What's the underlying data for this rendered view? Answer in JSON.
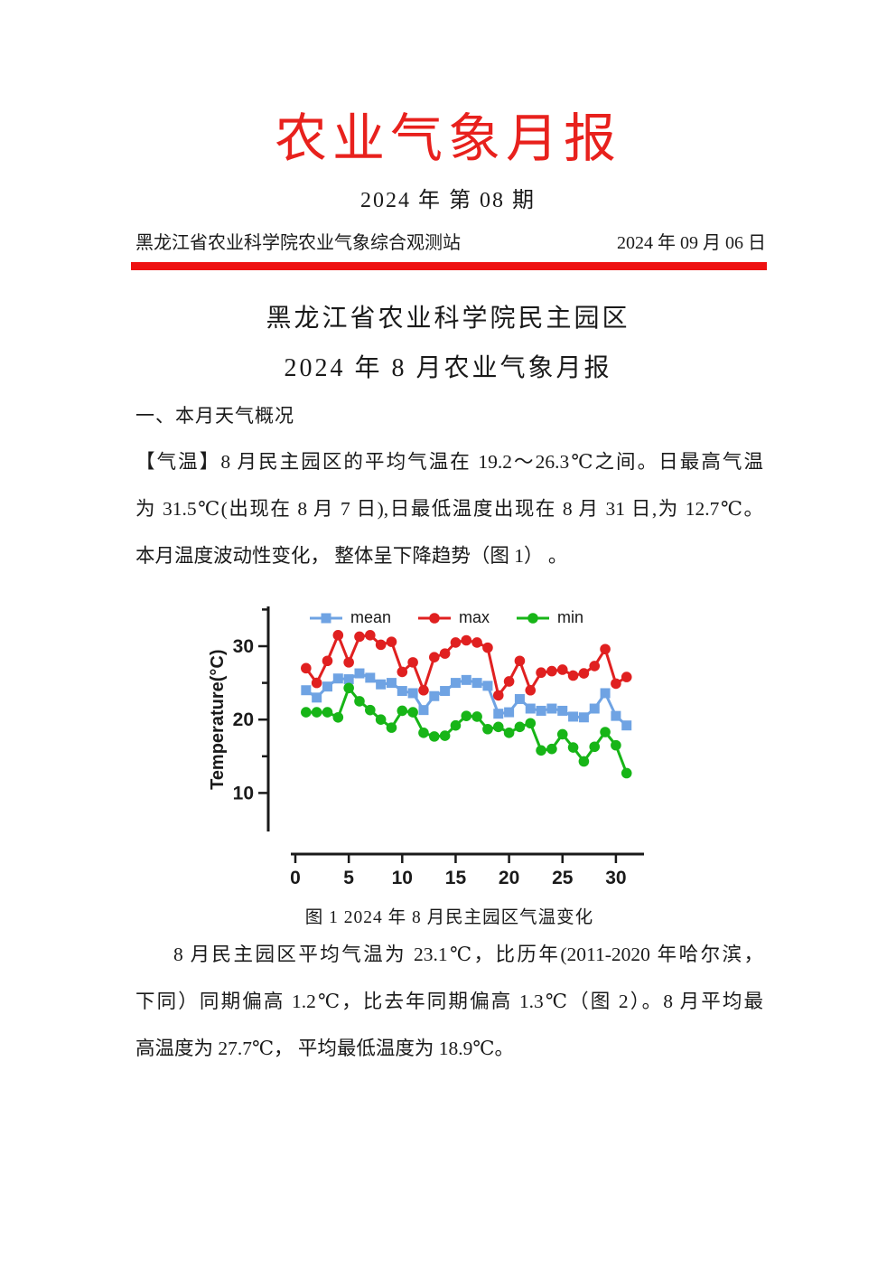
{
  "report": {
    "title": "农业气象月报",
    "issue": "2024 年 第 08 期",
    "organization": "黑龙江省农业科学院农业气象综合观测站",
    "date": "2024 年 09 月 06 日",
    "title_color": "#e8211d",
    "rule_color": "#ee1111"
  },
  "document": {
    "heading_line1": "黑龙江省农业科学院民主园区",
    "heading_line2": "2024 年 8 月农业气象月报",
    "section1_title": "一、本月天气概况",
    "paragraph1_lines": [
      "【气温】8 月民主园区的平均气温在 19.2～26.3℃之间。日最高气温",
      "为 31.5℃(出现在 8 月 7 日),日最低温度出现在 8 月 31 日,为 12.7℃。",
      "本月温度波动性变化， 整体呈下降趋势（图 1） 。"
    ],
    "figure1_caption": "图 1 2024 年 8 月民主园区气温变化",
    "paragraph2_lines": [
      "8 月民主园区平均气温为 23.1℃，比历年(2011-2020 年哈尔滨，",
      "下同）同期偏高 1.2℃，比去年同期偏高 1.3℃（图 2）。8 月平均最",
      "高温度为 27.7℃， 平均最低温度为 18.9℃。"
    ]
  },
  "chart_data": {
    "type": "line",
    "title": "",
    "xlabel": "",
    "ylabel": "Temperature(°C)",
    "x": [
      1,
      2,
      3,
      4,
      5,
      6,
      7,
      8,
      9,
      10,
      11,
      12,
      13,
      14,
      15,
      16,
      17,
      18,
      19,
      20,
      21,
      22,
      23,
      24,
      25,
      26,
      27,
      28,
      29,
      30,
      31
    ],
    "series": [
      {
        "name": "mean",
        "color": "#6fa3e3",
        "marker": "square",
        "values": [
          24.0,
          23.0,
          24.5,
          25.6,
          25.5,
          26.3,
          25.7,
          24.8,
          25.0,
          23.9,
          23.6,
          21.3,
          23.2,
          23.9,
          25.0,
          25.4,
          25.0,
          24.6,
          20.8,
          21.0,
          22.8,
          21.5,
          21.2,
          21.5,
          21.2,
          20.4,
          20.3,
          21.5,
          23.6,
          20.5,
          19.2
        ]
      },
      {
        "name": "max",
        "color": "#e02020",
        "marker": "circle",
        "values": [
          27.0,
          25.0,
          28.0,
          31.5,
          27.8,
          31.3,
          31.5,
          30.2,
          30.6,
          26.5,
          27.8,
          24.0,
          28.5,
          29.0,
          30.5,
          30.8,
          30.5,
          29.8,
          23.3,
          25.2,
          28.0,
          24.0,
          26.4,
          26.6,
          26.8,
          26.0,
          26.3,
          27.3,
          29.6,
          24.9,
          25.8
        ]
      },
      {
        "name": "min",
        "color": "#17b517",
        "marker": "circle",
        "values": [
          21.0,
          21.0,
          21.0,
          20.3,
          24.3,
          22.5,
          21.3,
          20.0,
          18.9,
          21.2,
          21.0,
          18.2,
          17.7,
          17.8,
          19.2,
          20.5,
          20.4,
          18.7,
          19.0,
          18.2,
          19.0,
          19.5,
          15.8,
          16.0,
          18.0,
          16.2,
          14.3,
          16.3,
          18.3,
          16.5,
          12.7
        ]
      }
    ],
    "x_ticks": [
      0,
      5,
      10,
      15,
      20,
      25,
      30
    ],
    "y_ticks_major": [
      10,
      20,
      30
    ],
    "y_ticks_minor": [
      15,
      25,
      35
    ],
    "xlim": [
      0,
      32
    ],
    "ylim": [
      5,
      35.5
    ],
    "grid": false,
    "legend_position": "top"
  }
}
